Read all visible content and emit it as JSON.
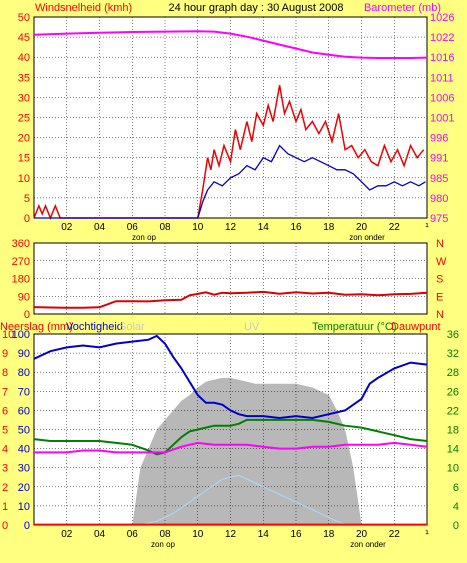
{
  "title": "24 hour graph day : 30 August 2008",
  "colors": {
    "bg": "#ffff80",
    "plot": "#ffffff",
    "wind": "#0000cc",
    "gust": "#ee0000",
    "baro": "#ff00ff",
    "dir": "#dd0000",
    "rain": "#ff0000",
    "humidity": "#0000cc",
    "solar": "#b8b8b8",
    "uv": "#b0d8ff",
    "temp": "#008000",
    "dew": "#ff00ff",
    "label_wind": "#ff0000",
    "label_baro": "#ff00ff",
    "label_temp": "#008000"
  },
  "chart_data": [
    {
      "type": "line",
      "name": "wind-baro",
      "left_label": "Windsnelheid (kmh)",
      "right_label": "Barometer (mb)",
      "x_ticks": [
        "02",
        "04",
        "06",
        "08",
        "10",
        "12",
        "14",
        "16",
        "18",
        "20",
        "22",
        "¹"
      ],
      "x_annotations": [
        "zon op",
        "zon onder"
      ],
      "y_left_ticks": [
        "50",
        "45",
        "40",
        "35",
        "30",
        "25",
        "20",
        "15",
        "10",
        "5",
        "0"
      ],
      "y_left_range": [
        0,
        50
      ],
      "y_right_ticks": [
        "1026",
        "1022",
        "1016",
        "1011",
        "1006",
        "1001",
        "996",
        "991",
        "985",
        "980",
        "975"
      ],
      "y_right_range": [
        975,
        1026
      ],
      "series": [
        {
          "key": "gust",
          "color_key": "gust",
          "x": [
            0,
            0.3,
            0.5,
            0.7,
            1,
            1.3,
            1.6,
            2,
            2.5,
            3,
            4,
            5,
            6,
            7,
            8,
            9,
            10,
            10.3,
            10.6,
            10.8,
            11,
            11.3,
            11.6,
            12,
            12.3,
            12.6,
            13,
            13.3,
            13.6,
            14,
            14.3,
            14.6,
            15,
            15.3,
            15.6,
            16,
            16.3,
            16.6,
            17,
            17.4,
            17.8,
            18.2,
            18.6,
            19,
            19.4,
            19.8,
            20.2,
            20.6,
            21,
            21.4,
            21.8,
            22.2,
            22.6,
            23,
            23.4,
            23.8
          ],
          "y": [
            0,
            3,
            1,
            3,
            0,
            3,
            0,
            0,
            0,
            0,
            0,
            0,
            0,
            0,
            0,
            0,
            0,
            7,
            15,
            12,
            17,
            13,
            18,
            14,
            22,
            17,
            24,
            19,
            26,
            23,
            28,
            24,
            33,
            26,
            29,
            24,
            27,
            22,
            24,
            21,
            24,
            19,
            26,
            17,
            18,
            15,
            17,
            14,
            13,
            18,
            14,
            17,
            13,
            18,
            15,
            17
          ]
        },
        {
          "key": "wind",
          "color_key": "wind",
          "x": [
            0,
            1,
            2,
            3,
            4,
            5,
            6,
            7,
            8,
            9,
            10,
            10.3,
            10.6,
            11,
            11.5,
            12,
            12.5,
            13,
            13.5,
            14,
            14.5,
            15,
            15.5,
            16,
            16.5,
            17,
            17.5,
            18,
            18.5,
            19,
            19.5,
            20,
            20.5,
            21,
            21.5,
            22,
            22.5,
            23,
            23.5,
            23.9
          ],
          "y": [
            0,
            0,
            0,
            0,
            0,
            0,
            0,
            0,
            0,
            0,
            0,
            4,
            7,
            9,
            8,
            10,
            11,
            13,
            12,
            15,
            14,
            18,
            16,
            15,
            14,
            15,
            14,
            13,
            12,
            12,
            11,
            9,
            7,
            8,
            8,
            9,
            8,
            9,
            8,
            9
          ]
        },
        {
          "key": "baro",
          "color_key": "baro",
          "x": [
            0,
            2,
            4,
            6,
            8,
            10,
            11,
            12,
            13,
            14,
            15,
            16,
            17,
            18,
            19,
            20,
            21,
            22,
            23,
            24
          ],
          "y": [
            1021.5,
            1021.8,
            1022,
            1022.2,
            1022.3,
            1022.4,
            1022.3,
            1021.8,
            1021,
            1020,
            1019,
            1018,
            1017,
            1016.4,
            1015.9,
            1015.7,
            1015.6,
            1015.6,
            1015.6,
            1015.7
          ]
        }
      ]
    },
    {
      "type": "line",
      "name": "wind-direction",
      "y_left_ticks": [
        "360",
        "270",
        "180",
        "90",
        "0"
      ],
      "y_left_range": [
        0,
        360
      ],
      "y_right_ticks": [
        "N",
        "W",
        "S",
        "E",
        "N"
      ],
      "series": [
        {
          "key": "direction",
          "color_key": "dir",
          "x": [
            0,
            1,
            2,
            3,
            4,
            5,
            6,
            7,
            8,
            9,
            9.5,
            10,
            10.5,
            11,
            11.5,
            12,
            13,
            14,
            15,
            16,
            17,
            18,
            19,
            20,
            21,
            22,
            23,
            24
          ],
          "y": [
            35,
            33,
            32,
            32,
            34,
            65,
            65,
            64,
            70,
            72,
            95,
            102,
            110,
            98,
            108,
            105,
            108,
            112,
            103,
            110,
            104,
            108,
            98,
            100,
            95,
            100,
            102,
            108
          ]
        }
      ]
    },
    {
      "type": "line",
      "name": "rain-humidity-solar-uv-temp",
      "left_label": "Neerslag (mm)",
      "left_label2": "Vochtigheid",
      "mid_label": "Solar",
      "uv_label": "UV",
      "right_label": "Temperatuur (°C)",
      "right_label2": "Dauwpunt",
      "y_left_outer_ticks": [
        "10",
        "9",
        "8",
        "7",
        "6",
        "5",
        "4",
        "3",
        "2",
        "1",
        "0"
      ],
      "y_left_inner_ticks": [
        "100",
        "90",
        "80",
        "70",
        "60",
        "50",
        "40",
        "30",
        "20",
        "10",
        "0"
      ],
      "y_right_ticks": [
        "36",
        "32",
        "28",
        "26",
        "22",
        "18",
        "14",
        "10",
        "6",
        "4",
        "0"
      ],
      "y_range": [
        0,
        100
      ],
      "series": [
        {
          "key": "solar",
          "color_key": "solar",
          "x": [
            6,
            6.5,
            7,
            7.5,
            8,
            8.5,
            9,
            9.5,
            10,
            10.5,
            11,
            11.5,
            12,
            12.5,
            13,
            13.5,
            14,
            15,
            16,
            17,
            18,
            18.5,
            19,
            19.5,
            20
          ],
          "y": [
            0,
            30,
            40,
            50,
            55,
            60,
            65,
            68,
            72,
            75,
            76,
            77,
            77,
            76,
            75,
            74,
            74,
            74,
            74,
            72,
            68,
            60,
            50,
            30,
            0
          ]
        },
        {
          "key": "uv",
          "color_key": "uv",
          "x": [
            6.5,
            7.5,
            8.5,
            9.5,
            10.5,
            11.5,
            12.5,
            13.5,
            14,
            15,
            16,
            17,
            18,
            19
          ],
          "y": [
            0,
            2,
            6,
            12,
            18,
            24,
            26,
            22,
            20,
            16,
            12,
            8,
            4,
            0
          ]
        },
        {
          "key": "humidity",
          "color_key": "humidity",
          "x": [
            0,
            0.5,
            1,
            2,
            3,
            4,
            5,
            6,
            7,
            7.5,
            8,
            8.5,
            9,
            9.5,
            10,
            10.5,
            11,
            11.5,
            12,
            12.5,
            13,
            14,
            15,
            16,
            17,
            18,
            19,
            19.5,
            20,
            20.5,
            21,
            22,
            23,
            24
          ],
          "y": [
            87,
            89,
            91,
            93,
            94,
            93,
            95,
            96,
            97,
            99,
            95,
            88,
            82,
            75,
            68,
            64,
            64,
            63,
            60,
            58,
            57,
            57,
            56,
            57,
            56,
            58,
            60,
            63,
            66,
            74,
            77,
            82,
            85,
            84
          ]
        },
        {
          "key": "temp",
          "color_key": "temp",
          "x": [
            0,
            1,
            2,
            3,
            4,
            5,
            6,
            7,
            7.5,
            8,
            8.5,
            9,
            9.5,
            10,
            10.5,
            11,
            11.5,
            12,
            12.5,
            13,
            14,
            15,
            16,
            17,
            18,
            19,
            20,
            21,
            22,
            23,
            24
          ],
          "y": [
            45,
            44,
            44,
            44,
            44,
            43,
            42,
            39,
            37,
            38,
            42,
            46,
            49,
            50,
            51,
            52,
            52,
            52,
            53,
            55,
            55,
            55,
            55,
            55,
            54,
            52,
            51,
            49,
            47,
            45,
            44
          ]
        },
        {
          "key": "dew",
          "color_key": "dew",
          "x": [
            0,
            1,
            2,
            3,
            4,
            5,
            6,
            7,
            8,
            9,
            10,
            11,
            12,
            13,
            14,
            15,
            16,
            17,
            18,
            19,
            20,
            21,
            22,
            23,
            24
          ],
          "y": [
            38,
            38,
            38,
            39,
            39,
            38,
            38,
            38,
            38,
            41,
            43,
            42,
            42,
            42,
            41,
            40,
            40,
            41,
            41,
            42,
            42,
            42,
            43,
            42,
            41
          ]
        },
        {
          "key": "rain",
          "color_key": "rain",
          "x": [
            0,
            24
          ],
          "y": [
            0.2,
            0.2
          ]
        }
      ]
    }
  ]
}
